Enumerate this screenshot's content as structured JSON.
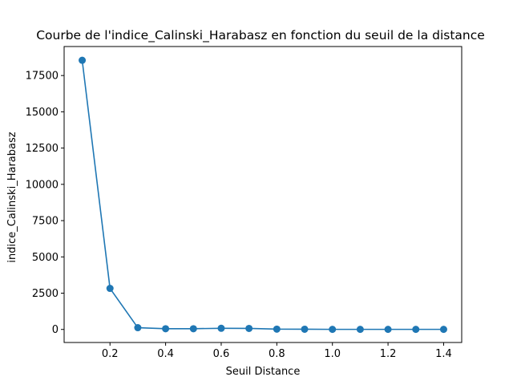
{
  "chart_data": {
    "type": "line",
    "title": "Courbe de l'indice_Calinski_Harabasz en fonction du seuil de la distance",
    "xlabel": "Seuil Distance",
    "ylabel": "indice_Calinski_Harabasz",
    "xlim": [
      0.035,
      1.465
    ],
    "ylim": [
      -900,
      19500
    ],
    "xticks": [
      0.2,
      0.4,
      0.6,
      0.8,
      1.0,
      1.2,
      1.4
    ],
    "xtick_labels": [
      "0.2",
      "0.4",
      "0.6",
      "0.8",
      "1.0",
      "1.2",
      "1.4"
    ],
    "yticks": [
      0,
      2500,
      5000,
      7500,
      10000,
      12500,
      15000,
      17500
    ],
    "ytick_labels": [
      "0",
      "2500",
      "5000",
      "7500",
      "10000",
      "12500",
      "15000",
      "17500"
    ],
    "grid": false,
    "color": "#1f77b4",
    "marker": "circle",
    "series": [
      {
        "x": [
          0.1,
          0.2,
          0.3,
          0.4,
          0.5,
          0.6,
          0.7,
          0.8,
          0.9,
          1.0,
          1.1,
          1.2,
          1.3,
          1.4
        ],
        "y": [
          18550,
          2830,
          120,
          50,
          50,
          80,
          70,
          20,
          15,
          5,
          5,
          5,
          5,
          5
        ]
      }
    ]
  }
}
